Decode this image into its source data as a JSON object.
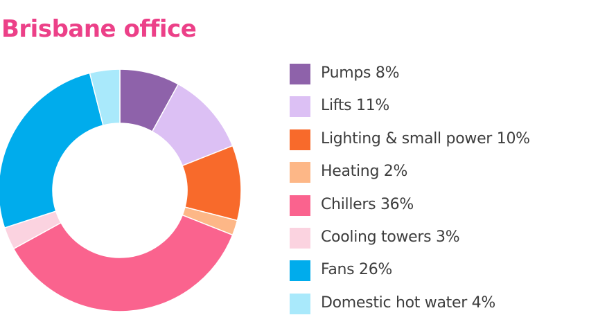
{
  "chart_data": {
    "type": "pie",
    "title": "Brisbane office",
    "categories": [
      "Pumps 8%",
      "Lifts 11%",
      "Lighting & small power 10%",
      "Heating 2%",
      "Chillers 36%",
      "Cooling towers 3%",
      "Fans 26%",
      "Domestic hot water 4%"
    ],
    "values": [
      8,
      11,
      10,
      2,
      36,
      3,
      26,
      4
    ],
    "colors": [
      "#8e62aa",
      "#dcc0f4",
      "#f86a2b",
      "#fdb787",
      "#fa638e",
      "#fbd3e0",
      "#00acec",
      "#a9e9fb"
    ],
    "legend_position": "right",
    "donut": true
  }
}
